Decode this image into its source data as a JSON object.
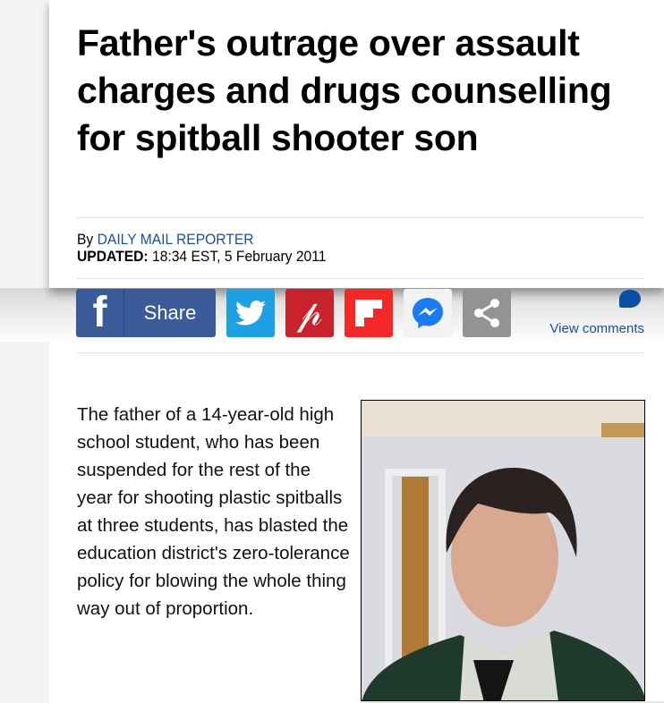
{
  "headline": "Father's outrage over assault charges and drugs counselling for spitball shooter son",
  "byline": {
    "prefix": "By ",
    "author": "DAILY MAIL REPORTER",
    "updated_label": "UPDATED:",
    "updated_value": " 18:34 EST, 5 February 2011"
  },
  "share": {
    "facebook_label": "Share",
    "view_comments": "View comments",
    "icons": [
      "facebook-icon",
      "twitter-icon",
      "pinterest-icon",
      "flipboard-icon",
      "messenger-icon",
      "share-icon",
      "comment-bubble-icon"
    ]
  },
  "colors": {
    "facebook": "#3b5b99",
    "twitter": "#1da1e2",
    "pinterest": "#c8232c",
    "flipboard": "#f52828",
    "share": "#939393",
    "link": "#1c4fa0"
  },
  "body": {
    "paragraph": "The father of a 14-year-old high school student, who has been suspended for the rest of the year for shooting plastic spitballs at three students, has blasted the education district's zero-tolerance policy for blowing the whole thing way out of proportion."
  }
}
